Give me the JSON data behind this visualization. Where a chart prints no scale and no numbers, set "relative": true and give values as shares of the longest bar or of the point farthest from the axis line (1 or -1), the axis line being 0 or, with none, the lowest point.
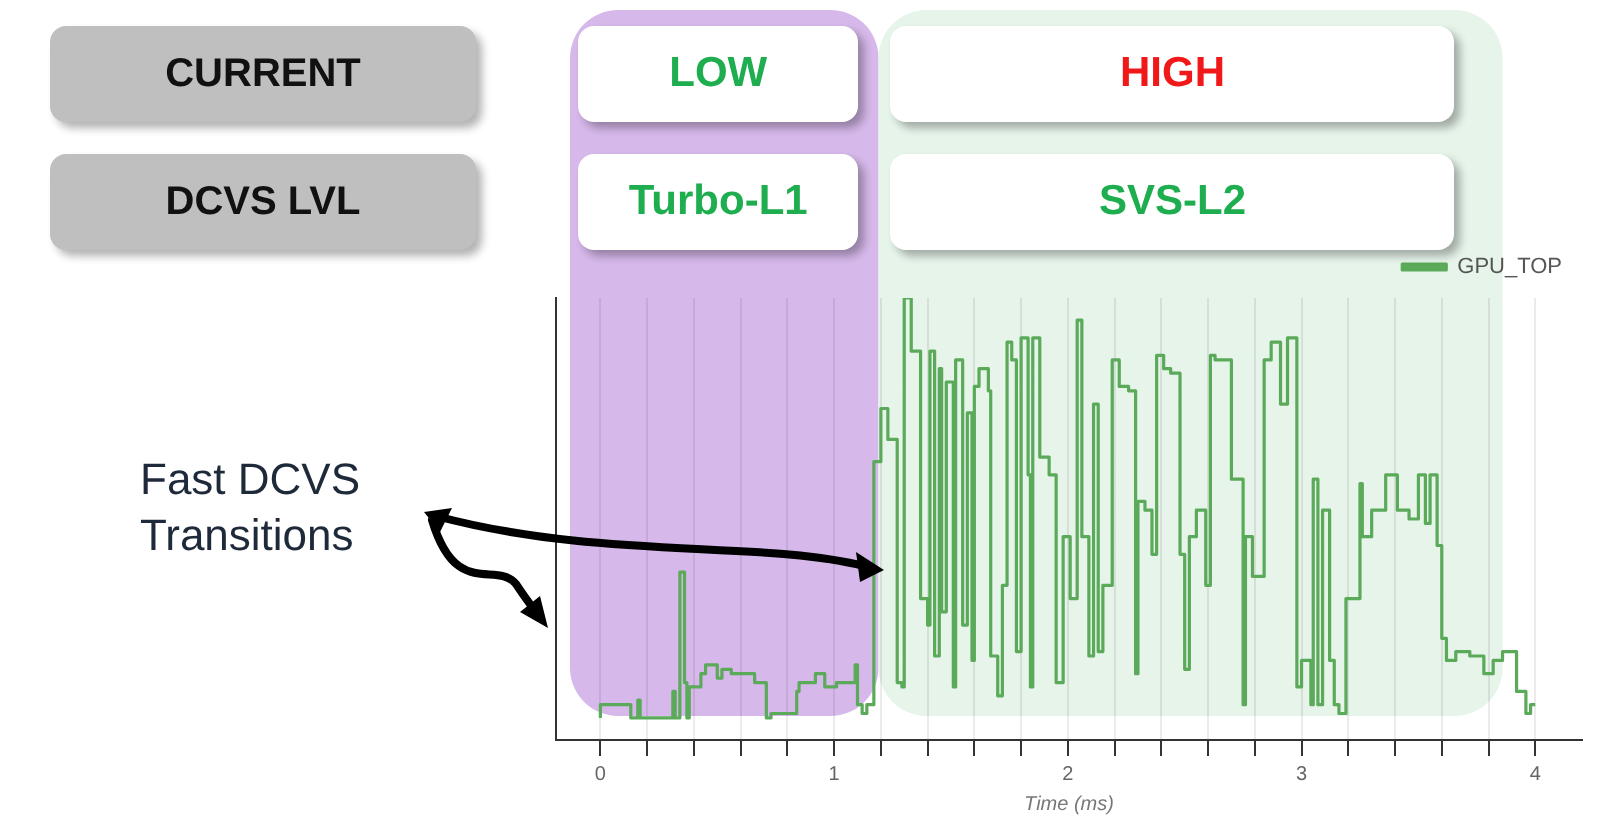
{
  "chart_data": {
    "type": "step",
    "xlabel": "Time (ms)",
    "relative": true,
    "xlim": [
      -0.19,
      4.2
    ],
    "xticks": [
      0,
      {
        "value": 0.2,
        "label": null
      },
      {
        "value": 0.4,
        "label": null
      },
      {
        "value": 0.6,
        "label": null
      },
      {
        "value": 0.8,
        "label": null
      },
      1,
      {
        "value": 1.2,
        "label": null
      },
      {
        "value": 1.4,
        "label": null
      },
      {
        "value": 1.6,
        "label": null
      },
      {
        "value": 1.8,
        "label": null
      },
      2,
      {
        "value": 2.2,
        "label": null
      },
      {
        "value": 2.4,
        "label": null
      },
      {
        "value": 2.6,
        "label": null
      },
      {
        "value": 2.8,
        "label": null
      },
      3,
      {
        "value": 3.2,
        "label": null
      },
      {
        "value": 3.4,
        "label": null
      },
      {
        "value": 3.6,
        "label": null
      },
      {
        "value": 3.8,
        "label": null
      },
      4
    ],
    "grid": "x",
    "legend": "top right",
    "bands": [
      {
        "axis": "x",
        "from": -0.13,
        "to": 1.19,
        "label": "LOW",
        "color": "#d6b8ea"
      },
      {
        "axis": "x",
        "from": 1.19,
        "to": 3.86,
        "label": "HIGH",
        "color": "#e6f4ea"
      }
    ],
    "annotations": [
      "CURRENT",
      "DCVS LVL",
      "Turbo-L1",
      "SVS-L2",
      "Fast DCVS Transitions"
    ],
    "series": [
      {
        "name": "GPU_TOP",
        "color": "#5aaa5a",
        "x": [
          0.0,
          0.13,
          0.16,
          0.17,
          0.31,
          0.32,
          0.34,
          0.36,
          0.37,
          0.38,
          0.43,
          0.45,
          0.5,
          0.52,
          0.56,
          0.6,
          0.66,
          0.71,
          0.73,
          0.84,
          0.85,
          0.88,
          0.92,
          0.96,
          1.01,
          1.05,
          1.09,
          1.1,
          1.12,
          1.14,
          1.17,
          1.2,
          1.23,
          1.27,
          1.29,
          1.3,
          1.33,
          1.37,
          1.4,
          1.41,
          1.43,
          1.45,
          1.46,
          1.48,
          1.51,
          1.52,
          1.55,
          1.57,
          1.59,
          1.6,
          1.62,
          1.66,
          1.67,
          1.7,
          1.72,
          1.74,
          1.76,
          1.78,
          1.8,
          1.83,
          1.84,
          1.85,
          1.88,
          1.92,
          1.95,
          1.98,
          2.01,
          2.04,
          2.06,
          2.09,
          2.11,
          2.13,
          2.15,
          2.19,
          2.22,
          2.26,
          2.29,
          2.3,
          2.33,
          2.36,
          2.38,
          2.41,
          2.44,
          2.48,
          2.5,
          2.52,
          2.55,
          2.59,
          2.61,
          2.63,
          2.7,
          2.75,
          2.76,
          2.79,
          2.84,
          2.87,
          2.91,
          2.94,
          2.98,
          3.0,
          3.04,
          3.05,
          3.07,
          3.09,
          3.12,
          3.14,
          3.16,
          3.19,
          3.25,
          3.26,
          3.3,
          3.36,
          3.41,
          3.46,
          3.5,
          3.53,
          3.55,
          3.58,
          3.6,
          3.62,
          3.66,
          3.72,
          3.78,
          3.82,
          3.86,
          3.92,
          3.96,
          3.98,
          4.0
        ],
        "values": [
          0.05,
          0.08,
          0.05,
          0.09,
          0.05,
          0.11,
          0.05,
          0.38,
          0.13,
          0.05,
          0.12,
          0.15,
          0.17,
          0.14,
          0.16,
          0.15,
          0.15,
          0.13,
          0.05,
          0.06,
          0.11,
          0.13,
          0.13,
          0.15,
          0.12,
          0.13,
          0.13,
          0.17,
          0.08,
          0.06,
          0.08,
          0.63,
          0.75,
          0.68,
          0.13,
          0.12,
          1,
          0.88,
          0.32,
          0.26,
          0.88,
          0.19,
          0.84,
          0.29,
          0.81,
          0.12,
          0.86,
          0.26,
          0.74,
          0.18,
          0.8,
          0.84,
          0.79,
          0.19,
          0.1,
          0.35,
          0.9,
          0.86,
          0.2,
          0.91,
          0.6,
          0.12,
          0.91,
          0.64,
          0.6,
          0.13,
          0.46,
          0.32,
          0.95,
          0.46,
          0.19,
          0.76,
          0.2,
          0.35,
          0.86,
          0.8,
          0.79,
          0.15,
          0.54,
          0.52,
          0.42,
          0.87,
          0.84,
          0.83,
          0.42,
          0.16,
          0.46,
          0.52,
          0.35,
          0.87,
          0.86,
          0.59,
          0.08,
          0.46,
          0.37,
          0.86,
          0.9,
          0.76,
          0.91,
          0.12,
          0.18,
          0.08,
          0.59,
          0.08,
          0.52,
          0.18,
          0.08,
          0.06,
          0.32,
          0.58,
          0.46,
          0.52,
          0.6,
          0.52,
          0.5,
          0.6,
          0.49,
          0.6,
          0.44,
          0.23,
          0.18,
          0.2,
          0.19,
          0.15,
          0.18,
          0.2,
          0.11,
          0.06,
          0.08
        ]
      }
    ]
  }
}
